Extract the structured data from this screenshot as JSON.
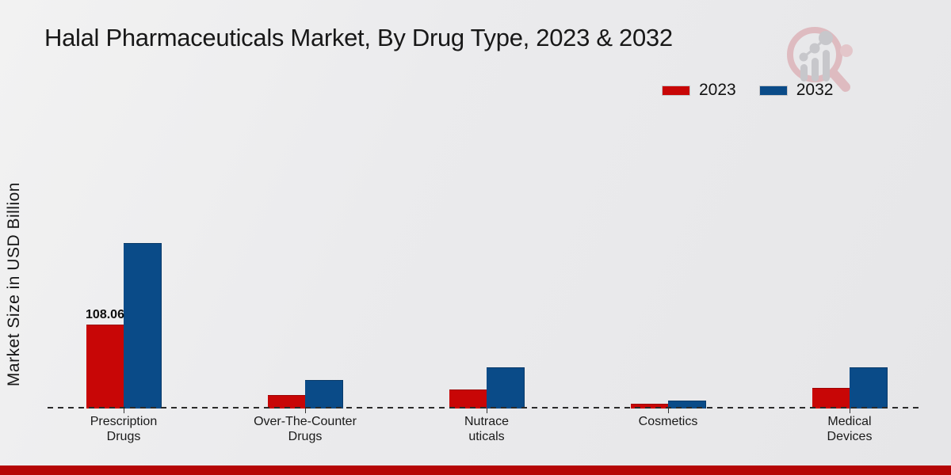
{
  "title": "Halal Pharmaceuticals Market, By Drug Type, 2023 & 2032",
  "y_axis_label": "Market Size in USD Billion",
  "legend": {
    "items": [
      {
        "label": "2023",
        "color": "#c80606"
      },
      {
        "label": "2032",
        "color": "#0a4b88"
      }
    ]
  },
  "watermark_icon": "magnifier-bar-chart-logo",
  "footer": {
    "accent_color": "#b50606"
  },
  "chart_data": {
    "type": "bar",
    "title": "Halal Pharmaceuticals Market, By Drug Type, 2023 & 2032",
    "xlabel": "",
    "ylabel": "Market Size in USD Billion",
    "categories": [
      "Prescription Drugs",
      "Over-The-Counter Drugs",
      "Nutraceuticals",
      "Cosmetics",
      "Medical Devices"
    ],
    "category_label_lines": [
      [
        "Prescription",
        "Drugs"
      ],
      [
        "Over-The-Counter",
        "Drugs"
      ],
      [
        "Nutrace",
        "uticals"
      ],
      [
        "Cosmetics"
      ],
      [
        "Medical",
        "Devices"
      ]
    ],
    "series": [
      {
        "name": "2023",
        "color": "#c80606",
        "values": [
          108.06,
          16.5,
          23.7,
          4.7,
          25.3
        ]
      },
      {
        "name": "2032",
        "color": "#0a4b88",
        "values": [
          214.3,
          35.8,
          52.2,
          9.6,
          52.8
        ]
      }
    ],
    "data_labels": [
      {
        "series": "2023",
        "category": "Prescription Drugs",
        "text": "108.06"
      }
    ],
    "ylim": [
      0,
      230
    ],
    "grid": false,
    "legend_position": "top-right",
    "baseline_style": "dashed-zero-line"
  }
}
